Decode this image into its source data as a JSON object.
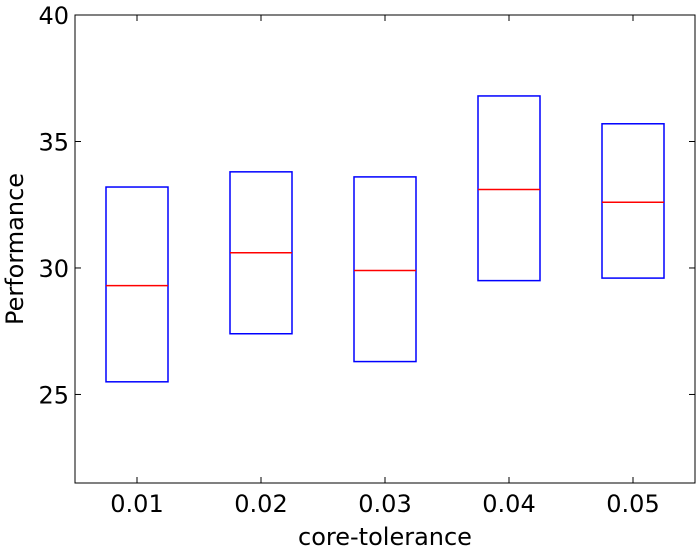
{
  "chart_data": {
    "type": "box",
    "xlabel": "core-tolerance",
    "ylabel": "Performance",
    "ylim": [
      21.5,
      40
    ],
    "yticks": [
      25,
      30,
      35,
      40
    ],
    "categories": [
      "0.01",
      "0.02",
      "0.03",
      "0.04",
      "0.05"
    ],
    "boxes": [
      {
        "category": "0.01",
        "q1": 25.5,
        "median": 29.3,
        "q3": 33.2
      },
      {
        "category": "0.02",
        "q1": 27.4,
        "median": 30.6,
        "q3": 33.8
      },
      {
        "category": "0.03",
        "q1": 26.3,
        "median": 29.9,
        "q3": 33.6
      },
      {
        "category": "0.04",
        "q1": 29.5,
        "median": 33.1,
        "q3": 36.8
      },
      {
        "category": "0.05",
        "q1": 29.6,
        "median": 32.6,
        "q3": 35.7
      }
    ],
    "colors": {
      "box": "#0000ff",
      "median": "#ff0000"
    },
    "grid": false
  }
}
